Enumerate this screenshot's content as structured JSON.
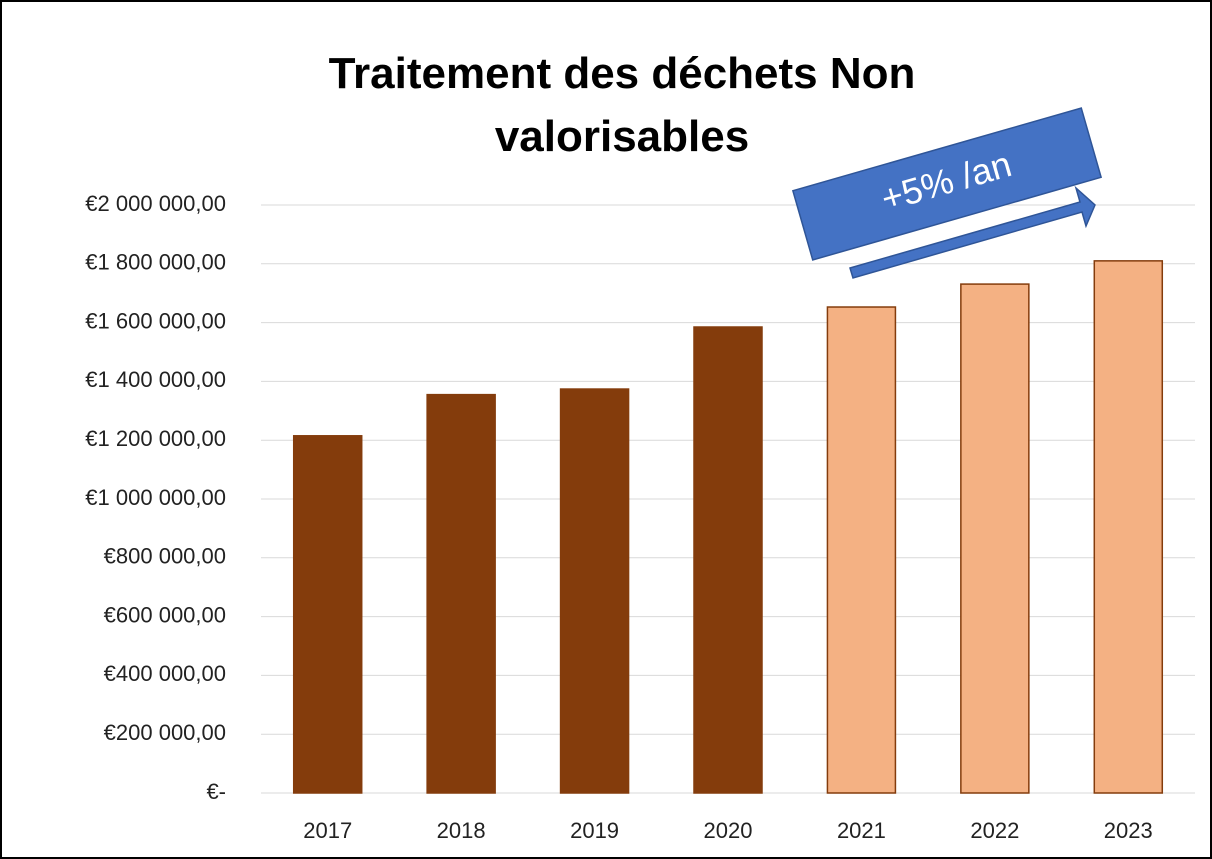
{
  "chart_data": {
    "type": "bar",
    "title": "Traitement des déchets Non valorisables",
    "annotation": "+5% /an",
    "categories": [
      "2017",
      "2018",
      "2019",
      "2020",
      "2021",
      "2022",
      "2023"
    ],
    "values": [
      1215000,
      1355000,
      1374000,
      1585000,
      1653000,
      1731000,
      1810000
    ],
    "colors": [
      "#843c0c",
      "#843c0c",
      "#843c0c",
      "#843c0c",
      "#f4b183",
      "#f4b183",
      "#f4b183"
    ],
    "edge_color": "#843c0c",
    "ylim": [
      0,
      2000000
    ],
    "yticks": [
      {
        "value": 0,
        "label": "€-"
      },
      {
        "value": 200000,
        "label": "€200 000,00"
      },
      {
        "value": 400000,
        "label": "€400 000,00"
      },
      {
        "value": 600000,
        "label": "€600 000,00"
      },
      {
        "value": 800000,
        "label": "€800 000,00"
      },
      {
        "value": 1000000,
        "label": "€1 000 000,00"
      },
      {
        "value": 1200000,
        "label": "€1 200 000,00"
      },
      {
        "value": 1400000,
        "label": "€1 400 000,00"
      },
      {
        "value": 1600000,
        "label": "€1 600 000,00"
      },
      {
        "value": 1800000,
        "label": "€1 800 000,00"
      },
      {
        "value": 2000000,
        "label": "€2 000 000,00"
      }
    ],
    "grid": true
  }
}
